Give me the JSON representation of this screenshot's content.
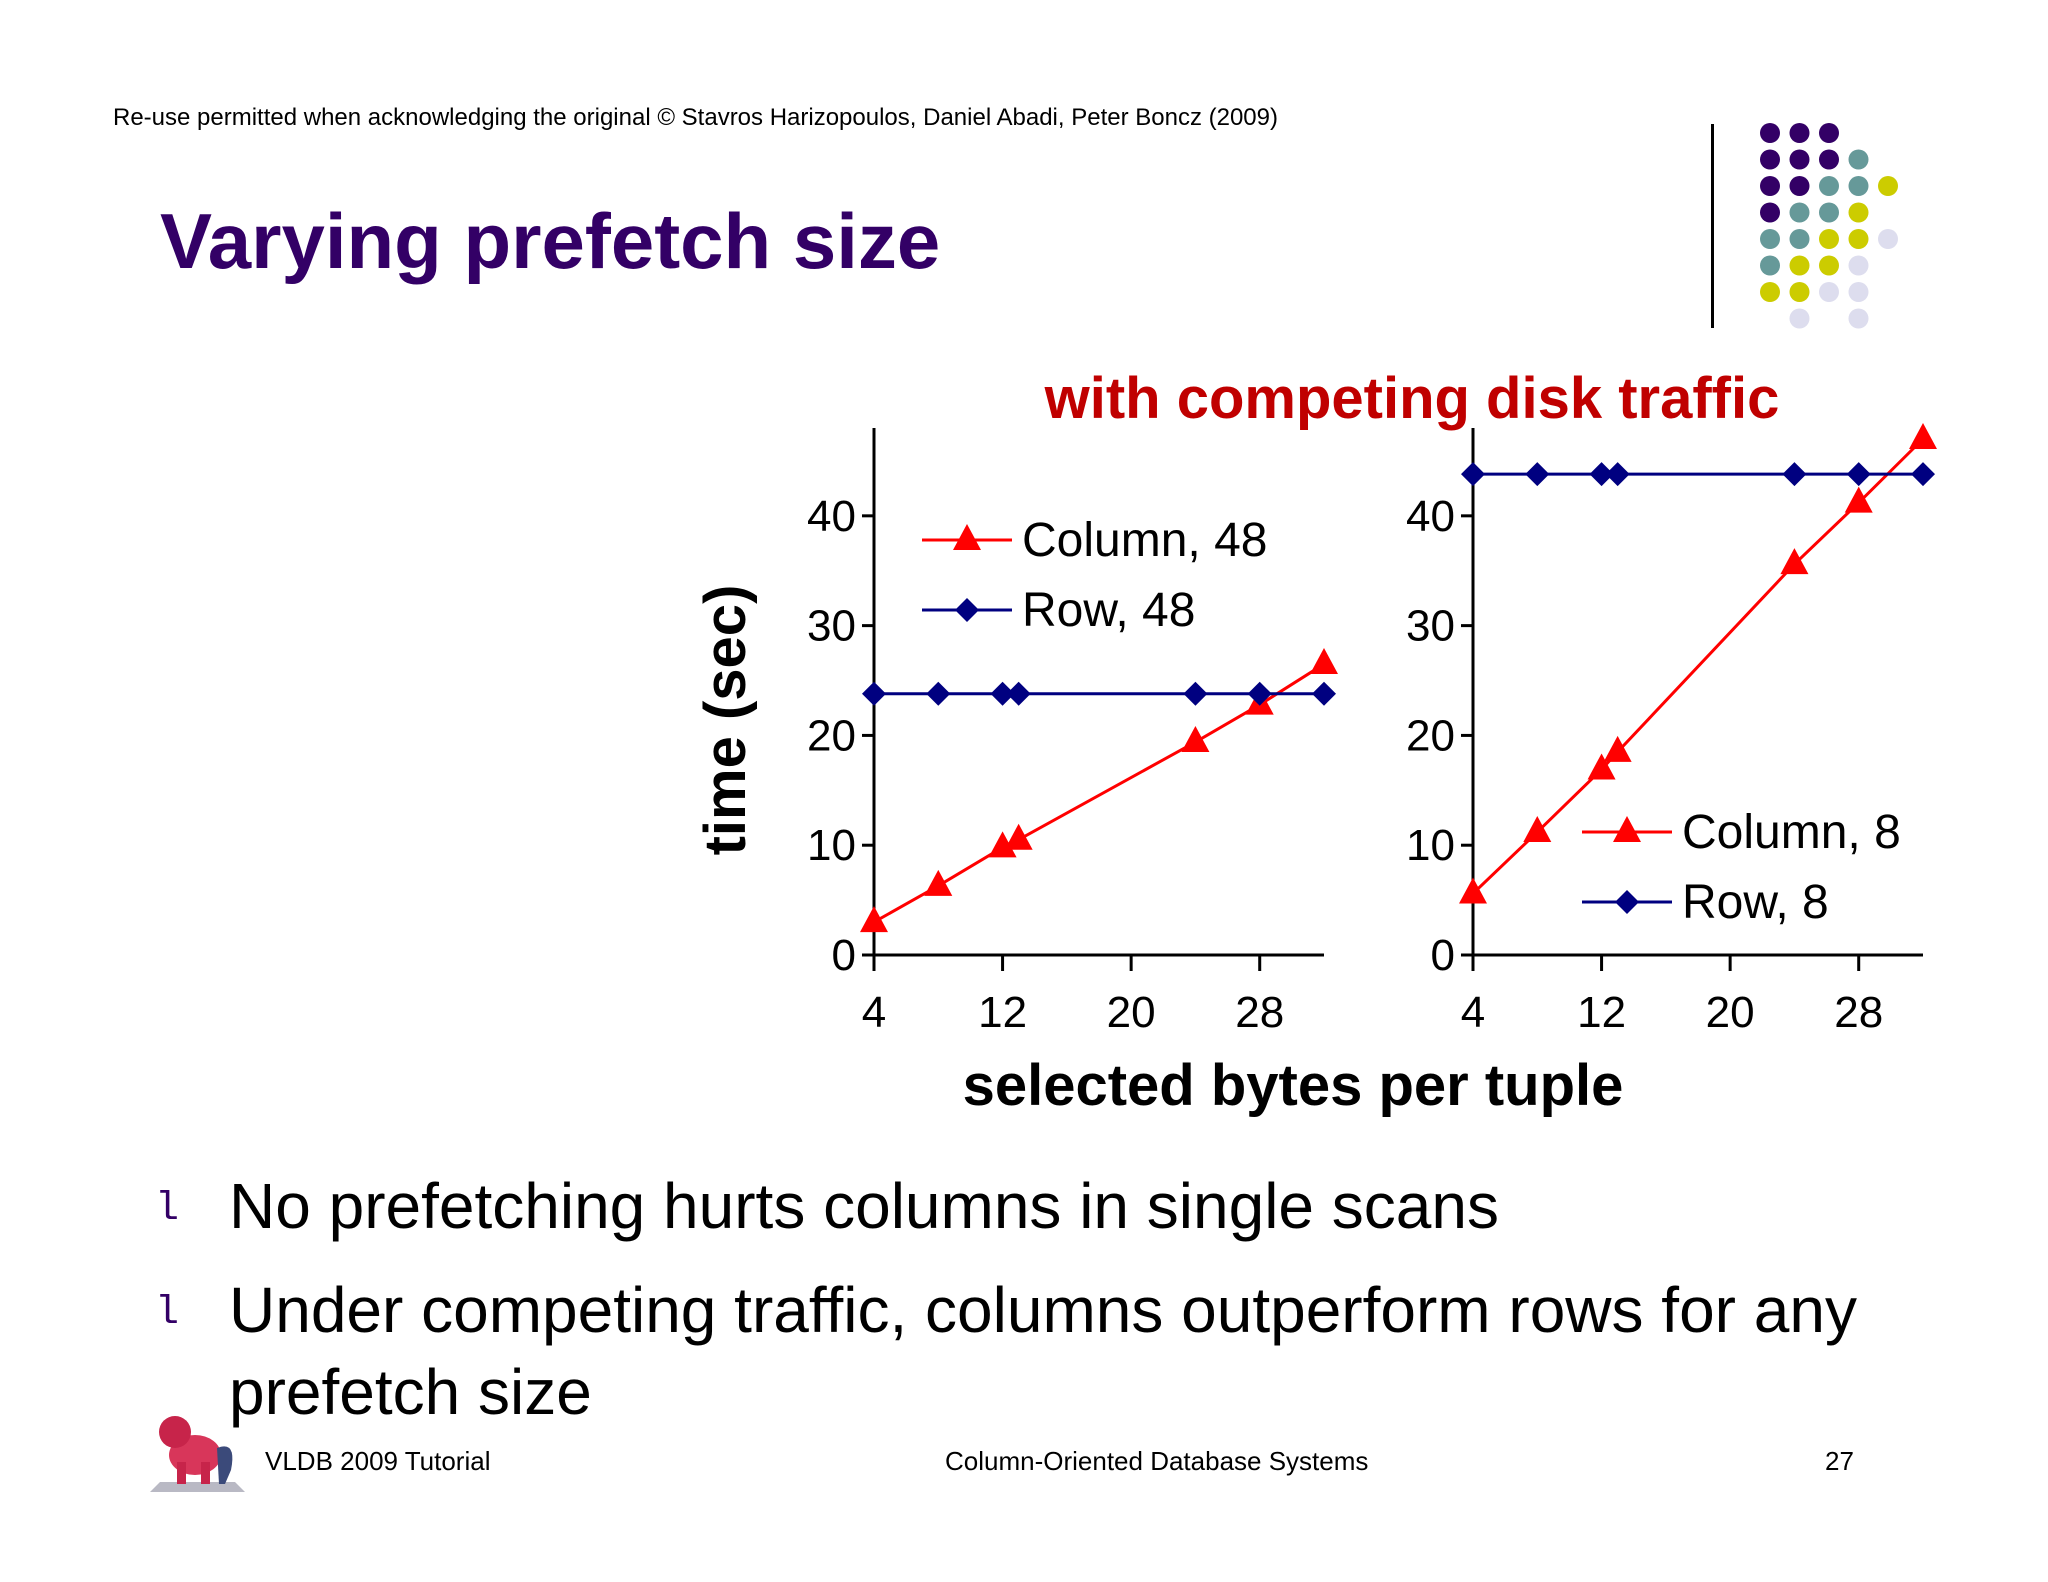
{
  "slide": {
    "copyright": "Re-use permitted when acknowledging the original © Stavros Harizopoulos, Daniel Abadi, Peter Boncz (2009)",
    "title": "Varying prefetch size",
    "bullets": [
      "No prefetching hurts columns in single scans",
      "Under competing traffic, columns outperform rows for any prefetch size"
    ],
    "bullet_marker": "l",
    "footer": {
      "left": "VLDB 2009 Tutorial",
      "center": "Column-Oriented Database Systems",
      "page": "27"
    },
    "colors": {
      "title": "#330066",
      "subtitle": "#C00000",
      "column_series": "#FF0000",
      "row_series": "#000080",
      "dots": [
        "#330066",
        "#669999",
        "#CCCC00",
        "#DDDDEE"
      ]
    }
  },
  "chart_data": [
    {
      "type": "line",
      "title": "with competing disk traffic",
      "xlabel": "selected bytes per tuple",
      "ylabel": "time (sec)",
      "xlim": [
        4,
        32
      ],
      "ylim": [
        0,
        48
      ],
      "xticks": [
        4,
        12,
        20,
        28
      ],
      "yticks": [
        0,
        10,
        20,
        30,
        40
      ],
      "legend_position": "top-left",
      "series": [
        {
          "name": "Column, 48",
          "marker": "triangle",
          "x": [
            4,
            8,
            12,
            13,
            24,
            28,
            32
          ],
          "y": [
            3,
            6.3,
            9.8,
            10.5,
            19.4,
            22.8,
            26.5
          ]
        },
        {
          "name": "Row, 48",
          "marker": "diamond",
          "x": [
            4,
            8,
            12,
            13,
            24,
            28,
            32
          ],
          "y": [
            23.8,
            23.8,
            23.8,
            23.8,
            23.8,
            23.8,
            23.8
          ]
        }
      ]
    },
    {
      "type": "line",
      "xlim": [
        4,
        32
      ],
      "ylim": [
        0,
        48
      ],
      "xticks": [
        4,
        12,
        20,
        28
      ],
      "yticks": [
        0,
        10,
        20,
        30,
        40
      ],
      "legend_position": "bottom-right",
      "series": [
        {
          "name": "Column, 8",
          "marker": "triangle",
          "x": [
            4,
            8,
            12,
            13,
            24,
            28,
            32
          ],
          "y": [
            5.6,
            11.2,
            16.9,
            18.5,
            35.6,
            41.2,
            47
          ]
        },
        {
          "name": "Row, 8",
          "marker": "diamond",
          "x": [
            4,
            8,
            12,
            13,
            24,
            28,
            32
          ],
          "y": [
            43.8,
            43.8,
            43.8,
            43.8,
            43.8,
            43.8,
            43.8
          ]
        }
      ]
    }
  ]
}
